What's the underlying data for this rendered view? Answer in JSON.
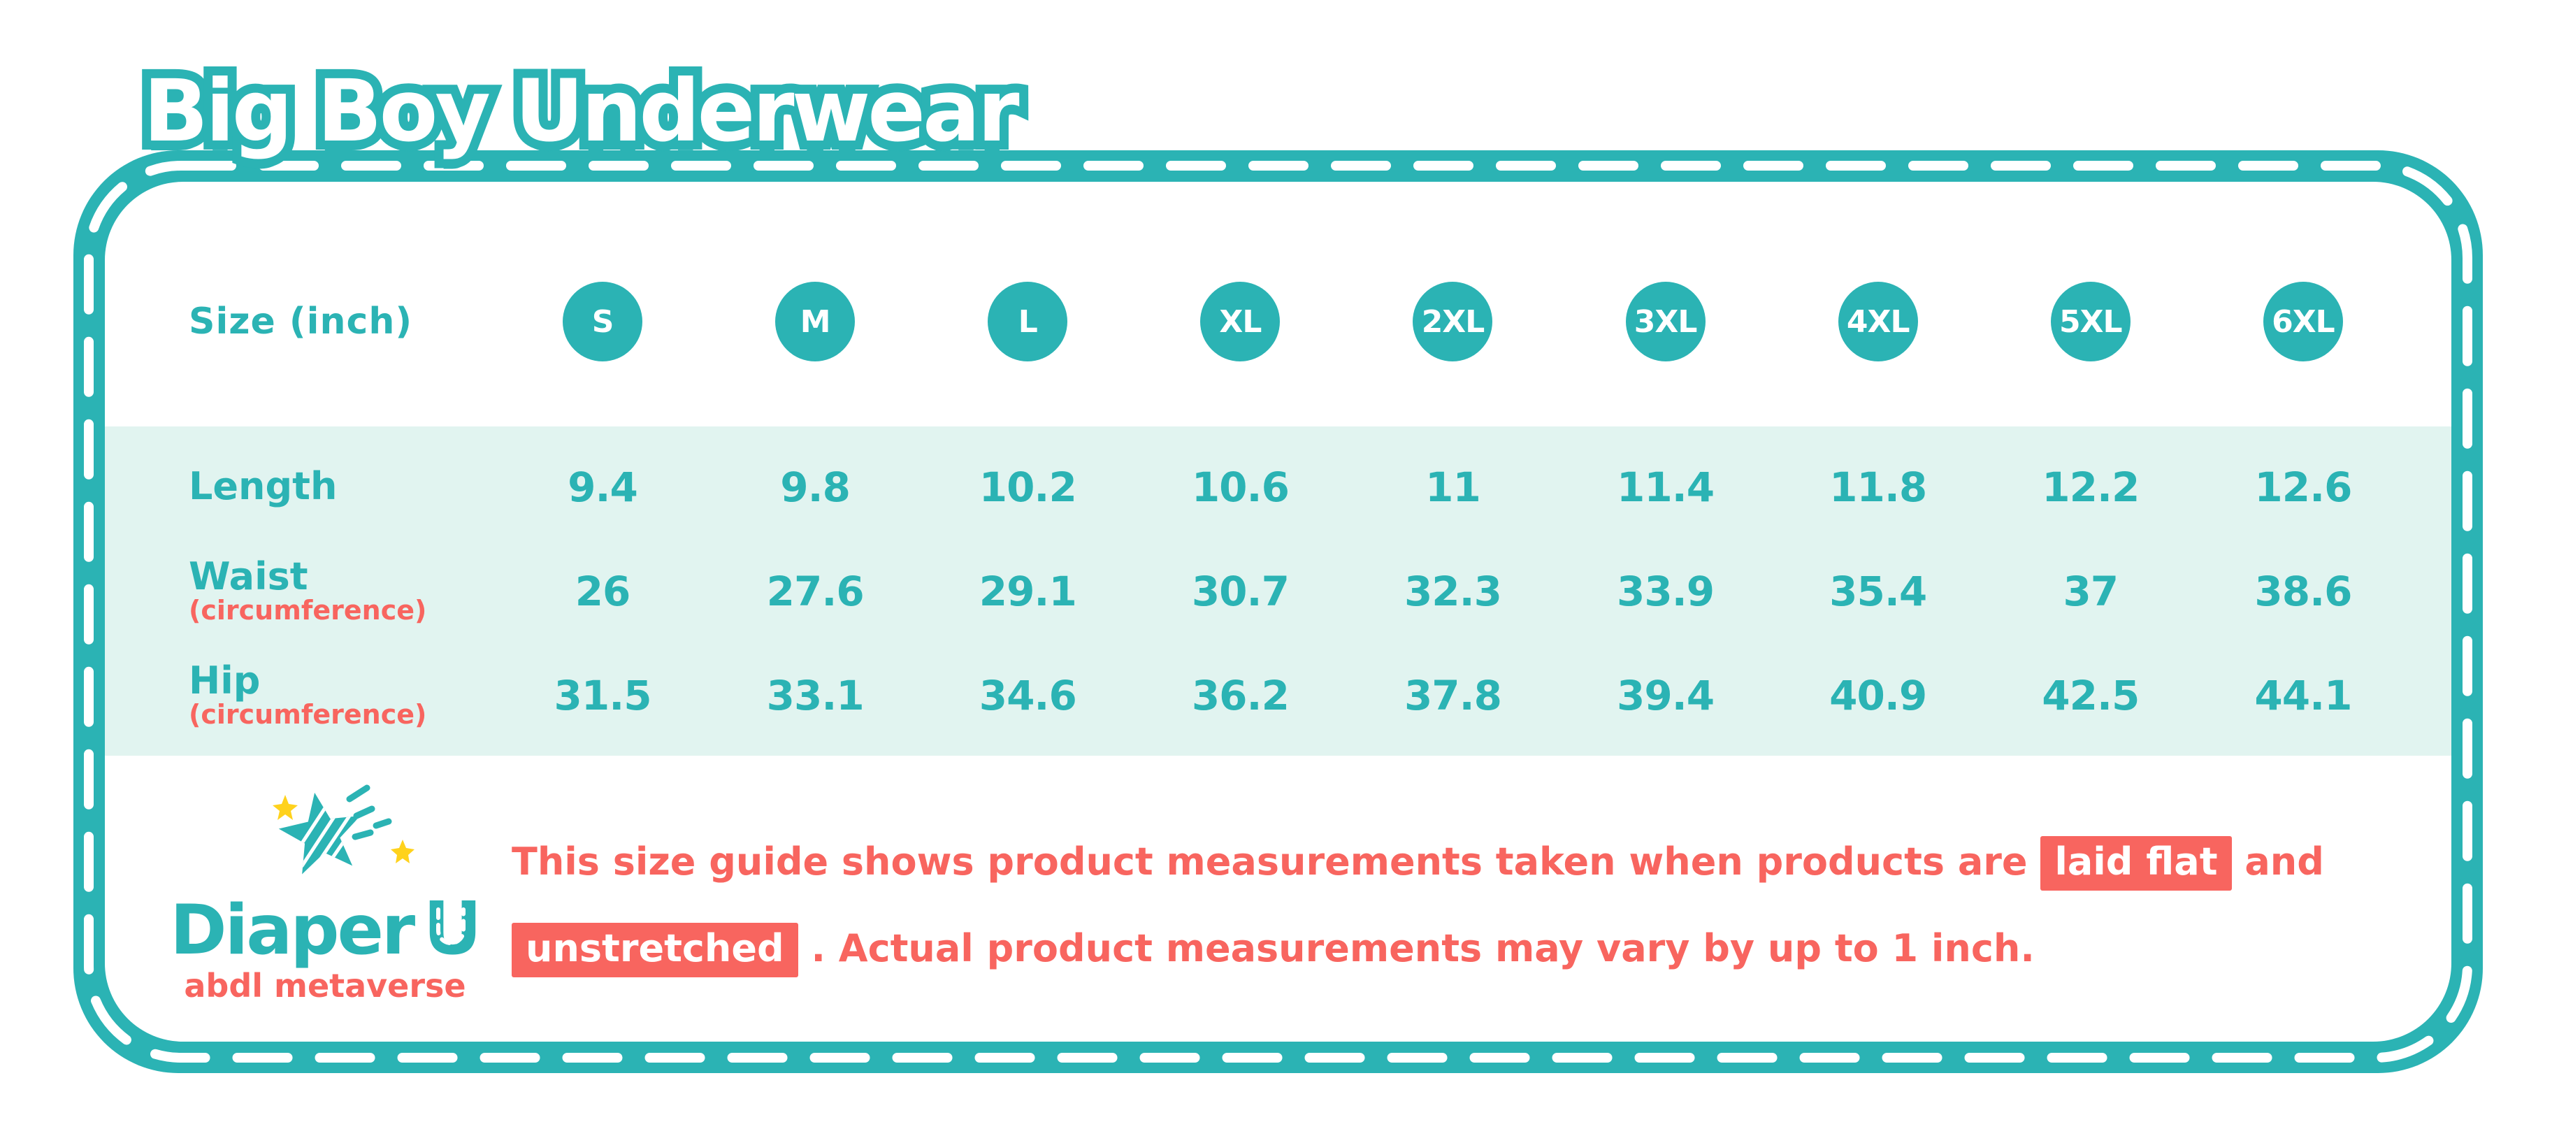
{
  "title": "Big Boy Underwear",
  "colors": {
    "teal": "#2bb3b4",
    "mint_row_band": "#e1f4f0",
    "coral": "#f8655f",
    "star_yellow": "#ffd21c"
  },
  "table": {
    "header_label": "Size (inch)",
    "sizes": [
      "S",
      "M",
      "L",
      "XL",
      "2XL",
      "3XL",
      "4XL",
      "5XL",
      "6XL"
    ],
    "rows": [
      {
        "label": "Length",
        "sublabel": "",
        "values": [
          "9.4",
          "9.8",
          "10.2",
          "10.6",
          "11",
          "11.4",
          "11.8",
          "12.2",
          "12.6"
        ]
      },
      {
        "label": "Waist",
        "sublabel": "(circumference)",
        "values": [
          "26",
          "27.6",
          "29.1",
          "30.7",
          "32.3",
          "33.9",
          "35.4",
          "37",
          "38.6"
        ]
      },
      {
        "label": "Hip",
        "sublabel": "(circumference)",
        "values": [
          "31.5",
          "33.1",
          "34.6",
          "36.2",
          "37.8",
          "39.4",
          "40.9",
          "42.5",
          "44.1"
        ]
      }
    ]
  },
  "logo": {
    "brand": "Diaper",
    "brand_u": "U",
    "tagline": "abdl metaverse"
  },
  "disclaimer": {
    "line1_pre": "This size guide shows product measurements taken when products are",
    "highlight1": "laid flat",
    "line1_post": "and",
    "highlight2": "unstretched",
    "line2_post": ". Actual product measurements may vary by up to 1 inch."
  },
  "chart_data": {
    "type": "table",
    "title": "Big Boy Underwear",
    "unit": "inch",
    "categories": [
      "S",
      "M",
      "L",
      "XL",
      "2XL",
      "3XL",
      "4XL",
      "5XL",
      "6XL"
    ],
    "series": [
      {
        "name": "Length",
        "values": [
          9.4,
          9.8,
          10.2,
          10.6,
          11,
          11.4,
          11.8,
          12.2,
          12.6
        ]
      },
      {
        "name": "Waist (circumference)",
        "values": [
          26,
          27.6,
          29.1,
          30.7,
          32.3,
          33.9,
          35.4,
          37,
          38.6
        ]
      },
      {
        "name": "Hip (circumference)",
        "values": [
          31.5,
          33.1,
          34.6,
          36.2,
          37.8,
          39.4,
          40.9,
          42.5,
          44.1
        ]
      }
    ],
    "note": "This size guide shows product measurements taken when products are laid flat and unstretched. Actual product measurements may vary by up to 1 inch."
  }
}
